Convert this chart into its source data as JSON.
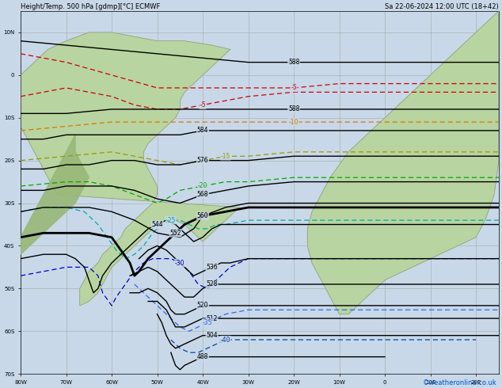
{
  "title_left": "Height/Temp. 500 hPa [gdmp][°C] ECMWF",
  "title_right": "Sa 22-06-2024 12:00 UTC (18+42)",
  "credit": "©weatheronline.co.uk",
  "bg_color": "#c8d8e8",
  "land_color": "#b8d4a0",
  "mountain_color": "#98b878",
  "grid_color": "#a8a8a8",
  "figsize": [
    6.34,
    4.9
  ],
  "dpi": 100,
  "lon_range": [
    -80,
    25
  ],
  "lat_range": [
    -70,
    15
  ]
}
